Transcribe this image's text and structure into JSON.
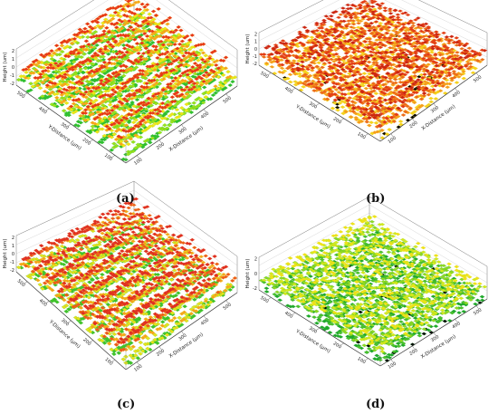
{
  "panels": [
    {
      "id": "a",
      "caption": "(a)",
      "pattern": "stripes",
      "palette": [
        "#2fbf2f",
        "#9be21a",
        "#f0e416",
        "#f7a21b",
        "#e63518"
      ],
      "height_label": "Height (um)",
      "height_ticks": [
        "2",
        "1",
        "0",
        "-1",
        "-2"
      ],
      "y_label": "Y-Distance (µm)",
      "y_ticks": [
        "100",
        "200",
        "300",
        "400",
        "500"
      ],
      "x_label": "X-Distance (µm)",
      "x_ticks": [
        "100",
        "200",
        "300",
        "400",
        "500"
      ]
    },
    {
      "id": "b",
      "caption": "(b)",
      "pattern": "noise",
      "palette": [
        "#f4d21c",
        "#f59a1c",
        "#ec6a1a",
        "#e23a16",
        "#c92512"
      ],
      "height_label": "Height (um)",
      "height_ticks": [
        "2",
        "1",
        "0",
        "-1",
        "-2"
      ],
      "y_label": "Y-Distance (µm)",
      "y_ticks": [
        "100",
        "200",
        "300",
        "400",
        "500"
      ],
      "x_label": "X-Distance (µm)",
      "x_ticks": [
        "100",
        "200",
        "300",
        "400",
        "500"
      ]
    },
    {
      "id": "c",
      "caption": "(c)",
      "pattern": "stripes",
      "palette": [
        "#3fc22a",
        "#e8e21a",
        "#f5a31b",
        "#ec5b1a",
        "#df2e22"
      ],
      "height_label": "Height (um)",
      "height_ticks": [
        "2",
        "1",
        "0",
        "-1",
        "-2"
      ],
      "y_label": "Y-Distance (µm)",
      "y_ticks": [
        "100",
        "200",
        "300",
        "400",
        "500"
      ],
      "x_label": "X-Distance (µm)",
      "x_ticks": [
        "100",
        "200",
        "300",
        "400",
        "500"
      ]
    },
    {
      "id": "d",
      "caption": "(d)",
      "pattern": "noise",
      "palette": [
        "#1fa82a",
        "#4cc12b",
        "#8fd822",
        "#d6e81c",
        "#f1e018"
      ],
      "height_label": "Height (um)",
      "height_ticks": [
        "2",
        "0",
        "-2"
      ],
      "y_label": "Y-Distance (µm)",
      "y_ticks": [
        "100",
        "200",
        "300",
        "400",
        "500"
      ],
      "x_label": "X-Distance (µm)",
      "x_ticks": [
        "100",
        "200",
        "300",
        "400",
        "500"
      ]
    }
  ]
}
